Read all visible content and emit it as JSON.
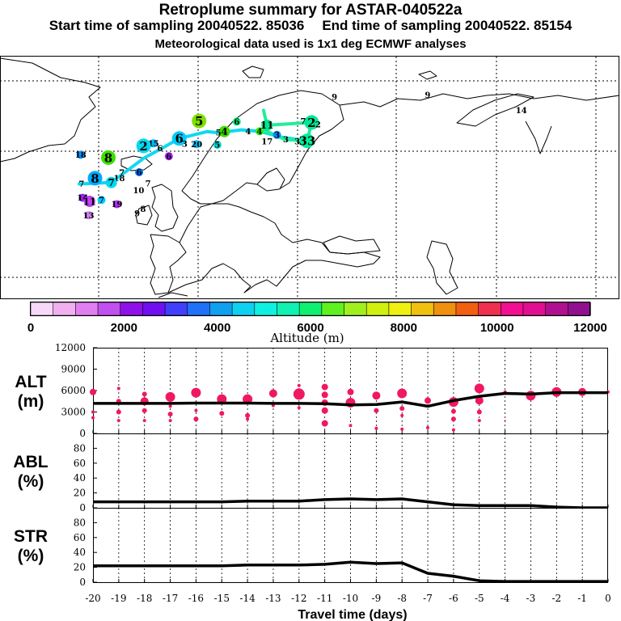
{
  "title": {
    "line1": "Retroplume summary for ASTAR-040522a",
    "start_label": "Start time of sampling 20040522. 85036",
    "end_label": "End time of sampling 20040522. 85154",
    "line3": "Meteorological data used is 1x1 deg ECMWF analyses"
  },
  "map": {
    "labels": [
      {
        "text": "9",
        "lon": 27.5,
        "lat": 75.2
      },
      {
        "text": "9",
        "lon": 46.3,
        "lat": 75.8
      },
      {
        "text": "14",
        "lon": 65.2,
        "lat": 71.5
      },
      {
        "text": "5",
        "lon": 0.2,
        "lat": 68.5,
        "size": "big",
        "color": "#7fe000"
      },
      {
        "text": "4",
        "lon": 5.3,
        "lat": 65.5,
        "size": "med",
        "color": "#3ce000"
      },
      {
        "text": "6",
        "lon": 7.8,
        "lat": 68.3,
        "size": "small",
        "color": "#00ee80"
      },
      {
        "text": "5",
        "lon": 4.1,
        "lat": 65.2,
        "size": "none",
        "color": "#00ee80"
      },
      {
        "text": "4",
        "lon": 10.1,
        "lat": 65.6,
        "size": "none",
        "color": "#00ee80"
      },
      {
        "text": "4",
        "lon": 12.4,
        "lat": 65.6,
        "size": "small",
        "color": "#30f000"
      },
      {
        "text": "11",
        "lon": 13.9,
        "lat": 67.3,
        "size": "med",
        "color": "#00e890"
      },
      {
        "text": "2",
        "lon": 22.9,
        "lat": 68.1,
        "size": "big",
        "color": "#00e898"
      },
      {
        "text": "7",
        "lon": 21.2,
        "lat": 68.4,
        "size": "none",
        "color": "#00e898"
      },
      {
        "text": "2",
        "lon": 24.2,
        "lat": 67.5,
        "size": "none",
        "color": "#00e898"
      },
      {
        "text": "3",
        "lon": 15.9,
        "lat": 64.6,
        "size": "small",
        "color": "#0090ff"
      },
      {
        "text": "17",
        "lon": 13.9,
        "lat": 62.7,
        "size": "none",
        "color": "#0040ff"
      },
      {
        "text": "3",
        "lon": 17.7,
        "lat": 63.3,
        "size": "none",
        "color": "#000000"
      },
      {
        "text": "3",
        "lon": 20.0,
        "lat": 62.7,
        "size": "none",
        "color": "#000000"
      },
      {
        "text": "33",
        "lon": 22.0,
        "lat": 62.9,
        "size": "big",
        "color": "#00ee98"
      },
      {
        "text": "6",
        "lon": -3.8,
        "lat": 63.6,
        "size": "big",
        "color": "#00ccff"
      },
      {
        "text": "20",
        "lon": -0.3,
        "lat": 62.0,
        "size": "small",
        "color": "#00c0ff"
      },
      {
        "text": "5",
        "lon": 3.9,
        "lat": 61.8,
        "size": "small",
        "color": "#00ddd0"
      },
      {
        "text": "3",
        "lon": -2.7,
        "lat": 62.1,
        "size": "none",
        "color": "#000000"
      },
      {
        "text": "6",
        "lon": -7.7,
        "lat": 60.8,
        "size": "none",
        "color": "#000000"
      },
      {
        "text": "15",
        "lon": -9.0,
        "lat": 62.2,
        "size": "small",
        "color": "#00b8ff"
      },
      {
        "text": "2",
        "lon": -11.0,
        "lat": 61.5,
        "size": "big",
        "color": "#00d8f0"
      },
      {
        "text": "8",
        "lon": -18.1,
        "lat": 58.2,
        "size": "big",
        "color": "#3ce000"
      },
      {
        "text": "6",
        "lon": -5.9,
        "lat": 58.6,
        "size": "small",
        "color": "#a020f0"
      },
      {
        "text": "18",
        "lon": -23.7,
        "lat": 59.0,
        "size": "small",
        "color": "#0090ff"
      },
      {
        "text": "6",
        "lon": -11.9,
        "lat": 54.1,
        "size": "small",
        "color": "#0070ff"
      },
      {
        "text": "8",
        "lon": -20.8,
        "lat": 52.4,
        "size": "big",
        "color": "#00aaff"
      },
      {
        "text": "18",
        "lon": -15.9,
        "lat": 52.4,
        "size": "none",
        "color": "#00aaff"
      },
      {
        "text": "7",
        "lon": -17.5,
        "lat": 51.2,
        "size": "med",
        "color": "#00d8f0"
      },
      {
        "text": "7",
        "lon": -15.4,
        "lat": 54.0,
        "size": "none",
        "color": "#000000"
      },
      {
        "text": "7",
        "lon": -23.5,
        "lat": 50.8,
        "size": "none",
        "color": "#00d8f0"
      },
      {
        "text": "7",
        "lon": -10.1,
        "lat": 50.9,
        "size": "none",
        "color": "#d060e0"
      },
      {
        "text": "10",
        "lon": -12.0,
        "lat": 49.0,
        "size": "none",
        "color": "#d060e0"
      },
      {
        "text": "14",
        "lon": -23.3,
        "lat": 46.9,
        "size": "small",
        "color": "#a020f0"
      },
      {
        "text": "11",
        "lon": -21.9,
        "lat": 45.9,
        "size": "med",
        "color": "#c040f0"
      },
      {
        "text": "7",
        "lon": -19.5,
        "lat": 46.3,
        "size": "small",
        "color": "#00ccff"
      },
      {
        "text": "19",
        "lon": -16.4,
        "lat": 45.1,
        "size": "small",
        "color": "#b030f0"
      },
      {
        "text": "8",
        "lon": -11.1,
        "lat": 43.8,
        "size": "none",
        "color": "#000000"
      },
      {
        "text": "9",
        "lon": -12.3,
        "lat": 42.5,
        "size": "none",
        "color": "#000000"
      },
      {
        "text": "13",
        "lon": -22.1,
        "lat": 42.0,
        "size": "small",
        "color": "#d080f0"
      }
    ],
    "plume_blue": [
      [
        -24,
        50.8
      ],
      [
        -17.5,
        51.2
      ],
      [
        -11,
        58
      ],
      [
        -7.7,
        60.5
      ],
      [
        -3.8,
        63.6
      ],
      [
        1.8,
        65.5
      ],
      [
        4.1,
        65.2
      ],
      [
        8.7,
        66.0
      ],
      [
        12.4,
        65.6
      ],
      [
        17,
        63.9
      ],
      [
        22,
        62.9
      ]
    ],
    "plume_green": [
      [
        13.2,
        71.5
      ],
      [
        13.9,
        67.3
      ],
      [
        22.9,
        68.1
      ],
      [
        22.0,
        62.9
      ],
      [
        17.5,
        63.3
      ],
      [
        13.9,
        65.6
      ],
      [
        12.4,
        65.6
      ]
    ]
  },
  "colorbar": {
    "ticks": [
      "0",
      "2000",
      "4000",
      "6000",
      "8000",
      "10000",
      "12000"
    ],
    "label": "Altitude (m)",
    "colors": [
      "#f8d8f8",
      "#f0b0f0",
      "#e080f0",
      "#c050f0",
      "#9010e8",
      "#7010f0",
      "#4040f8",
      "#2070f8",
      "#10a0f0",
      "#10d0f0",
      "#10f0e0",
      "#10f0b0",
      "#10f070",
      "#60f020",
      "#a0f020",
      "#d0f010",
      "#f0f010",
      "#f0c010",
      "#f09010",
      "#f06010",
      "#f03050",
      "#f01090",
      "#e01090",
      "#b01090",
      "#901090"
    ]
  },
  "chart_data": [
    {
      "type": "line",
      "title": "ALT",
      "ylabel": "ALT (m)",
      "ylim": [
        0,
        12000
      ],
      "yticks": [
        "0",
        "3000",
        "6000",
        "9000",
        "12000"
      ],
      "x": [
        -20,
        -19,
        -18,
        -17,
        -16,
        -15,
        -14,
        -13,
        -12,
        -11,
        -10,
        -9,
        -8,
        -7,
        -6,
        -5,
        -4,
        -3,
        -2,
        -1,
        0
      ],
      "series": [
        {
          "name": "altitude",
          "values": [
            4200,
            4200,
            4200,
            4200,
            4250,
            4250,
            4250,
            4200,
            4200,
            4150,
            4000,
            4050,
            4400,
            3800,
            4600,
            5200,
            5600,
            5500,
            5700,
            5700,
            5700
          ]
        }
      ],
      "bubbles": [
        [
          -20,
          5800,
          4
        ],
        [
          -20,
          3000,
          2
        ],
        [
          -20,
          2200,
          2
        ],
        [
          -19,
          6300,
          2
        ],
        [
          -19,
          4500,
          3
        ],
        [
          -19,
          3000,
          3
        ],
        [
          -19,
          1800,
          2
        ],
        [
          -18,
          5500,
          3
        ],
        [
          -18,
          4500,
          5
        ],
        [
          -18,
          3200,
          3
        ],
        [
          -18,
          1800,
          2
        ],
        [
          -17,
          5100,
          6
        ],
        [
          -17,
          3800,
          2
        ],
        [
          -17,
          2700,
          3
        ],
        [
          -17,
          1800,
          2
        ],
        [
          -16,
          5700,
          6
        ],
        [
          -16,
          3200,
          2
        ],
        [
          -16,
          2000,
          3
        ],
        [
          -15,
          4800,
          6
        ],
        [
          -15,
          2800,
          3
        ],
        [
          -14,
          4800,
          6
        ],
        [
          -14,
          2500,
          3
        ],
        [
          -14,
          2000,
          2
        ],
        [
          -13,
          5600,
          5
        ],
        [
          -13,
          3900,
          2
        ],
        [
          -12,
          5500,
          7
        ],
        [
          -12,
          3600,
          2
        ],
        [
          -12,
          6700,
          2
        ],
        [
          -11,
          6500,
          4
        ],
        [
          -11,
          5400,
          4
        ],
        [
          -11,
          4300,
          4
        ],
        [
          -11,
          3200,
          4
        ],
        [
          -11,
          1400,
          4
        ],
        [
          -10,
          5800,
          4
        ],
        [
          -10,
          4300,
          6
        ],
        [
          -10,
          1100,
          2
        ],
        [
          -9,
          5300,
          5
        ],
        [
          -9,
          3200,
          3
        ],
        [
          -9,
          700,
          2
        ],
        [
          -8,
          5600,
          6
        ],
        [
          -8,
          3500,
          3
        ],
        [
          -8,
          2500,
          2
        ],
        [
          -8,
          600,
          2
        ],
        [
          -7,
          4600,
          4
        ],
        [
          -7,
          800,
          2
        ],
        [
          -6,
          4400,
          6
        ],
        [
          -6,
          3100,
          3
        ],
        [
          -6,
          2000,
          3
        ],
        [
          -6,
          500,
          2
        ],
        [
          -5,
          6300,
          6
        ],
        [
          -5,
          4600,
          5
        ],
        [
          -5,
          3000,
          3
        ],
        [
          -5,
          1800,
          2
        ],
        [
          -4,
          5800,
          2
        ],
        [
          -4,
          1800,
          1
        ],
        [
          -3,
          5300,
          6
        ],
        [
          -2,
          5800,
          6
        ],
        [
          -1,
          5800,
          5
        ],
        [
          0,
          5800,
          2
        ]
      ]
    },
    {
      "type": "line",
      "title": "ABL",
      "ylabel": "ABL (%)",
      "ylim": [
        0,
        100
      ],
      "yticks": [
        "0",
        "20",
        "40",
        "60",
        "80"
      ],
      "x": [
        -20,
        -19,
        -18,
        -17,
        -16,
        -15,
        -14,
        -13,
        -12,
        -11,
        -10,
        -9,
        -8,
        -7,
        -6,
        -5,
        -4,
        -3,
        -2,
        -1,
        0
      ],
      "series": [
        {
          "name": "abl",
          "values": [
            8,
            8,
            8,
            8,
            8,
            8,
            9,
            9,
            9,
            11,
            12,
            11,
            12,
            8,
            4,
            3,
            3,
            3,
            1,
            0,
            0
          ]
        }
      ]
    },
    {
      "type": "line",
      "title": "STR",
      "ylabel": "STR (%)",
      "ylim": [
        0,
        100
      ],
      "yticks": [
        "0",
        "20",
        "40",
        "60",
        "80"
      ],
      "x": [
        -20,
        -19,
        -18,
        -17,
        -16,
        -15,
        -14,
        -13,
        -12,
        -11,
        -10,
        -9,
        -8,
        -7,
        -6,
        -5,
        -4,
        -3,
        -2,
        -1,
        0
      ],
      "series": [
        {
          "name": "str",
          "values": [
            22,
            22,
            22,
            22,
            22,
            22,
            23,
            23,
            23,
            24,
            27,
            25,
            26,
            12,
            8,
            2,
            1,
            1,
            1,
            1,
            1
          ]
        }
      ],
      "xlabel": "Travel time (days)",
      "xticklabels": [
        "-20",
        "-19",
        "-18",
        "-17",
        "-16",
        "-15",
        "-14",
        "-13",
        "-12",
        "-11",
        "-10",
        "-9",
        "-8",
        "-7",
        "-6",
        "-5",
        "-4",
        "-3",
        "-2",
        "-1",
        "0"
      ]
    }
  ],
  "panel_labels": {
    "alt": [
      "ALT",
      "(m)"
    ],
    "abl": [
      "ABL",
      "(%)"
    ],
    "str": [
      "STR",
      "(%)"
    ]
  },
  "series_color": "#000000",
  "bubble_color": "#f01860"
}
